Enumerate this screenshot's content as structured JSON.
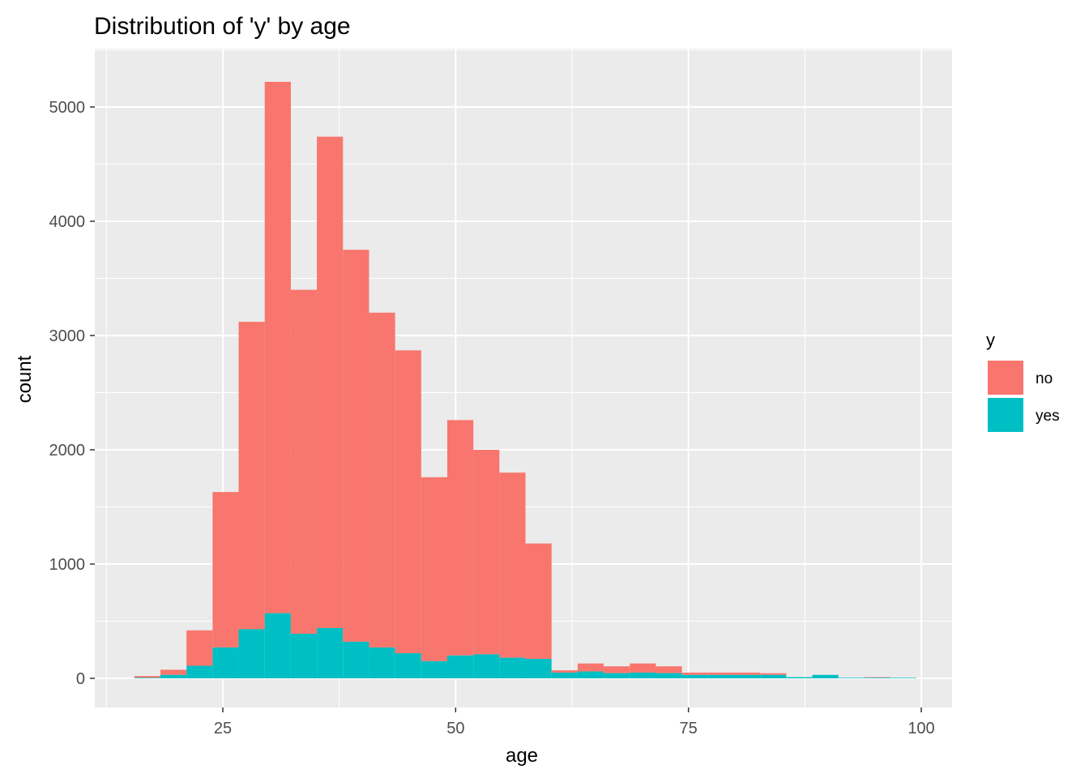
{
  "chart_data": {
    "type": "bar",
    "subtype": "stacked-histogram",
    "title": "Distribution of 'y' by age",
    "xlabel": "age",
    "ylabel": "count",
    "xlim": [
      15.0,
      100.0
    ],
    "ylim": [
      0,
      5200
    ],
    "xticks": [
      25,
      50,
      75,
      100
    ],
    "yticks": [
      0,
      1000,
      2000,
      3000,
      4000,
      5000
    ],
    "bins": [
      [
        15.5,
        18.3
      ],
      [
        18.3,
        21.1
      ],
      [
        21.1,
        23.9
      ],
      [
        23.9,
        26.7
      ],
      [
        26.7,
        29.5
      ],
      [
        29.5,
        32.3
      ],
      [
        32.3,
        35.1
      ],
      [
        35.1,
        37.9
      ],
      [
        37.9,
        40.7
      ],
      [
        40.7,
        43.5
      ],
      [
        43.5,
        46.3
      ],
      [
        46.3,
        49.1
      ],
      [
        49.1,
        51.9
      ],
      [
        51.9,
        54.7
      ],
      [
        54.7,
        57.5
      ],
      [
        57.5,
        60.3
      ],
      [
        60.3,
        63.1
      ],
      [
        63.1,
        65.9
      ],
      [
        65.9,
        68.7
      ],
      [
        68.7,
        71.5
      ],
      [
        71.5,
        74.3
      ],
      [
        74.3,
        77.1
      ],
      [
        77.1,
        79.9
      ],
      [
        79.9,
        82.7
      ],
      [
        82.7,
        85.5
      ],
      [
        85.5,
        88.3
      ],
      [
        88.3,
        91.1
      ],
      [
        91.1,
        93.9
      ],
      [
        93.9,
        96.7
      ],
      [
        96.7,
        99.5
      ]
    ],
    "legend": {
      "title": "y",
      "position": "right"
    },
    "grid": true,
    "series": [
      {
        "name": "no",
        "color": "#F8766D",
        "values": [
          15,
          45,
          310,
          1360,
          2690,
          4650,
          3010,
          4300,
          3430,
          2930,
          2650,
          1610,
          2060,
          1790,
          1620,
          1010,
          20,
          70,
          60,
          80,
          60,
          20,
          20,
          20,
          15,
          0,
          0,
          0,
          5,
          0
        ]
      },
      {
        "name": "yes",
        "color": "#00BFC4",
        "values": [
          5,
          30,
          110,
          270,
          430,
          570,
          390,
          440,
          320,
          270,
          220,
          150,
          200,
          210,
          180,
          170,
          50,
          60,
          45,
          50,
          45,
          30,
          30,
          30,
          30,
          10,
          30,
          5,
          5,
          5
        ]
      }
    ]
  }
}
